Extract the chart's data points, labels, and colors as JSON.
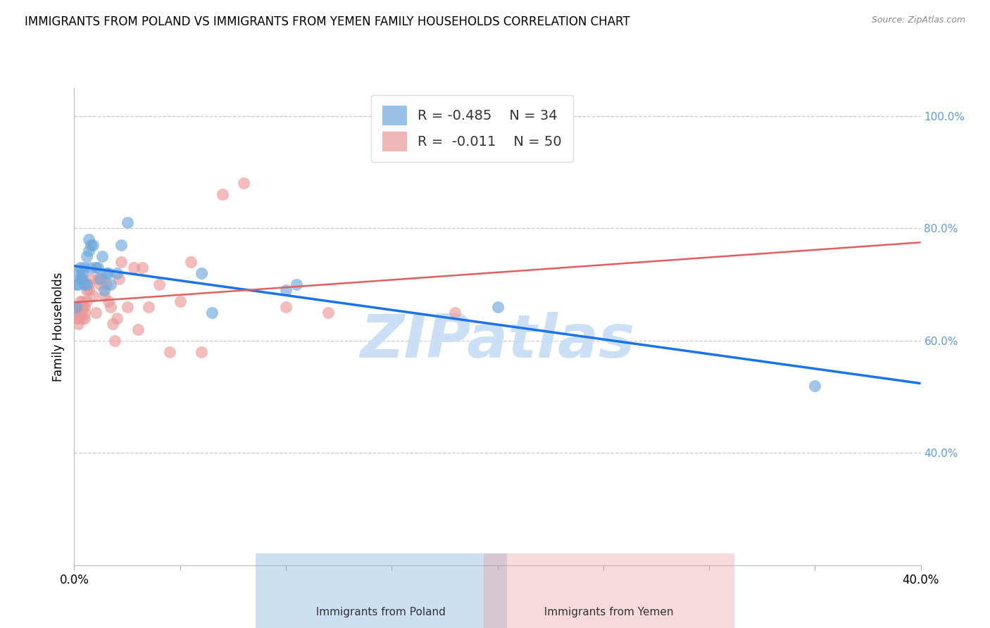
{
  "title": "IMMIGRANTS FROM POLAND VS IMMIGRANTS FROM YEMEN FAMILY HOUSEHOLDS CORRELATION CHART",
  "source": "Source: ZipAtlas.com",
  "ylabel": "Family Households",
  "ylabel_right_labels": [
    "100.0%",
    "80.0%",
    "60.0%",
    "40.0%"
  ],
  "ylabel_right_values": [
    1.0,
    0.8,
    0.6,
    0.4
  ],
  "x_min": 0.0,
  "x_max": 0.4,
  "y_min": 0.2,
  "y_max": 1.05,
  "legend_R_poland": "-0.485",
  "legend_N_poland": "34",
  "legend_R_yemen": "-0.011",
  "legend_N_yemen": "50",
  "poland_color": "#6fa8dc",
  "yemen_color": "#ea9999",
  "poland_line_color": "#1a73e8",
  "yemen_line_color": "#e06060",
  "poland_scatter_x": [
    0.001,
    0.001,
    0.002,
    0.002,
    0.003,
    0.003,
    0.004,
    0.004,
    0.005,
    0.005,
    0.006,
    0.006,
    0.007,
    0.007,
    0.008,
    0.008,
    0.009,
    0.01,
    0.011,
    0.012,
    0.013,
    0.014,
    0.015,
    0.016,
    0.017,
    0.02,
    0.022,
    0.025,
    0.06,
    0.065,
    0.1,
    0.105,
    0.2,
    0.35
  ],
  "poland_scatter_y": [
    0.66,
    0.7,
    0.7,
    0.72,
    0.71,
    0.73,
    0.71,
    0.72,
    0.7,
    0.73,
    0.7,
    0.75,
    0.76,
    0.78,
    0.77,
    0.73,
    0.77,
    0.73,
    0.73,
    0.71,
    0.75,
    0.69,
    0.72,
    0.72,
    0.7,
    0.72,
    0.77,
    0.81,
    0.72,
    0.65,
    0.69,
    0.7,
    0.66,
    0.52
  ],
  "yemen_scatter_x": [
    0.001,
    0.001,
    0.001,
    0.002,
    0.002,
    0.002,
    0.002,
    0.003,
    0.003,
    0.003,
    0.004,
    0.004,
    0.004,
    0.005,
    0.005,
    0.005,
    0.006,
    0.006,
    0.007,
    0.007,
    0.008,
    0.009,
    0.01,
    0.011,
    0.012,
    0.013,
    0.014,
    0.015,
    0.016,
    0.017,
    0.018,
    0.019,
    0.02,
    0.021,
    0.022,
    0.025,
    0.028,
    0.03,
    0.032,
    0.035,
    0.04,
    0.045,
    0.05,
    0.055,
    0.06,
    0.07,
    0.08,
    0.1,
    0.12,
    0.18
  ],
  "yemen_scatter_y": [
    0.65,
    0.66,
    0.64,
    0.66,
    0.65,
    0.63,
    0.64,
    0.66,
    0.65,
    0.67,
    0.66,
    0.64,
    0.67,
    0.65,
    0.66,
    0.64,
    0.69,
    0.67,
    0.69,
    0.7,
    0.71,
    0.68,
    0.65,
    0.71,
    0.7,
    0.71,
    0.68,
    0.7,
    0.67,
    0.66,
    0.63,
    0.6,
    0.64,
    0.71,
    0.74,
    0.66,
    0.73,
    0.62,
    0.73,
    0.66,
    0.7,
    0.58,
    0.67,
    0.74,
    0.58,
    0.86,
    0.88,
    0.66,
    0.65,
    0.65
  ],
  "grid_color": "#cccccc",
  "background_color": "#ffffff",
  "watermark": "ZIPatlas",
  "watermark_color": "#cce0f5"
}
